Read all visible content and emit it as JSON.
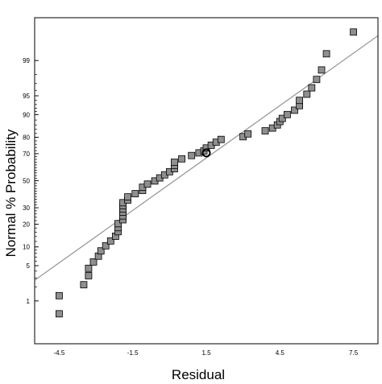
{
  "chart_data": {
    "type": "scatter",
    "title": "",
    "xlabel": "Residual",
    "ylabel": "Normal % Probability",
    "x_ticks": [
      "-4.5",
      "-1.5",
      "1.5",
      "4.5",
      "7.5"
    ],
    "y_ticks": [
      "1",
      "5",
      "10",
      "20",
      "30",
      "50",
      "70",
      "80",
      "90",
      "95",
      "99"
    ],
    "xlim": [
      -5.5,
      8.5
    ],
    "ylim": [
      0.08,
      99.92
    ],
    "y_scale": "normal-probability",
    "grid": false,
    "colors": {
      "marker_fill": "#8f8f8f",
      "marker_stroke": "#000000",
      "reference_line": "#999999",
      "axes": "#000000"
    },
    "reference_line": {
      "x": [
        -5.5,
        8.5
      ],
      "y": [
        2.7,
        99.75
      ]
    },
    "series": [
      {
        "marker": "square",
        "points": [
          {
            "x": -4.5,
            "y": 0.5
          },
          {
            "x": -4.5,
            "y": 1.3
          },
          {
            "x": -3.5,
            "y": 2.2
          },
          {
            "x": -3.3,
            "y": 3.3
          },
          {
            "x": -3.3,
            "y": 4.5
          },
          {
            "x": -3.1,
            "y": 5.8
          },
          {
            "x": -2.9,
            "y": 7.2
          },
          {
            "x": -2.8,
            "y": 8.7
          },
          {
            "x": -2.6,
            "y": 10.4
          },
          {
            "x": -2.4,
            "y": 12.2
          },
          {
            "x": -2.2,
            "y": 14.1
          },
          {
            "x": -2.1,
            "y": 16.2
          },
          {
            "x": -2.1,
            "y": 18.2
          },
          {
            "x": -2.1,
            "y": 20.3
          },
          {
            "x": -1.9,
            "y": 22.5
          },
          {
            "x": -1.9,
            "y": 24.8
          },
          {
            "x": -1.9,
            "y": 27.1
          },
          {
            "x": -1.9,
            "y": 29.3
          },
          {
            "x": -1.9,
            "y": 31.5
          },
          {
            "x": -1.9,
            "y": 33.5
          },
          {
            "x": -1.7,
            "y": 35.5
          },
          {
            "x": -1.7,
            "y": 37.7
          },
          {
            "x": -1.4,
            "y": 40.1
          },
          {
            "x": -1.1,
            "y": 42.6
          },
          {
            "x": -1.1,
            "y": 45.0
          },
          {
            "x": -0.9,
            "y": 47.4
          },
          {
            "x": -0.6,
            "y": 49.8
          },
          {
            "x": -0.4,
            "y": 52.2
          },
          {
            "x": -0.2,
            "y": 54.5
          },
          {
            "x": 0.0,
            "y": 56.9
          },
          {
            "x": 0.2,
            "y": 59.2
          },
          {
            "x": 0.2,
            "y": 61.6
          },
          {
            "x": 0.2,
            "y": 64.0
          },
          {
            "x": 0.5,
            "y": 66.4
          },
          {
            "x": 0.9,
            "y": 68.7
          },
          {
            "x": 1.2,
            "y": 70.5
          },
          {
            "x": 1.4,
            "y": 71.8
          },
          {
            "x": 1.5,
            "y": 73.7
          },
          {
            "x": 1.7,
            "y": 75.4
          },
          {
            "x": 1.9,
            "y": 77.2
          },
          {
            "x": 2.1,
            "y": 78.8
          },
          {
            "x": 3.0,
            "y": 80.3
          },
          {
            "x": 3.2,
            "y": 81.8
          },
          {
            "x": 3.9,
            "y": 83.3
          },
          {
            "x": 4.2,
            "y": 84.6
          },
          {
            "x": 4.4,
            "y": 86.0
          },
          {
            "x": 4.5,
            "y": 87.4
          },
          {
            "x": 4.6,
            "y": 88.6
          },
          {
            "x": 4.8,
            "y": 90.0
          },
          {
            "x": 5.1,
            "y": 91.4
          },
          {
            "x": 5.3,
            "y": 92.7
          },
          {
            "x": 5.3,
            "y": 94.0
          },
          {
            "x": 5.6,
            "y": 95.3
          },
          {
            "x": 5.8,
            "y": 96.4
          },
          {
            "x": 6.0,
            "y": 97.5
          },
          {
            "x": 6.2,
            "y": 98.4
          },
          {
            "x": 6.4,
            "y": 99.3
          },
          {
            "x": 7.5,
            "y": 99.8
          }
        ]
      }
    ],
    "highlighted_point": {
      "marker": "circle",
      "x": 1.5,
      "y": 70.5
    }
  }
}
